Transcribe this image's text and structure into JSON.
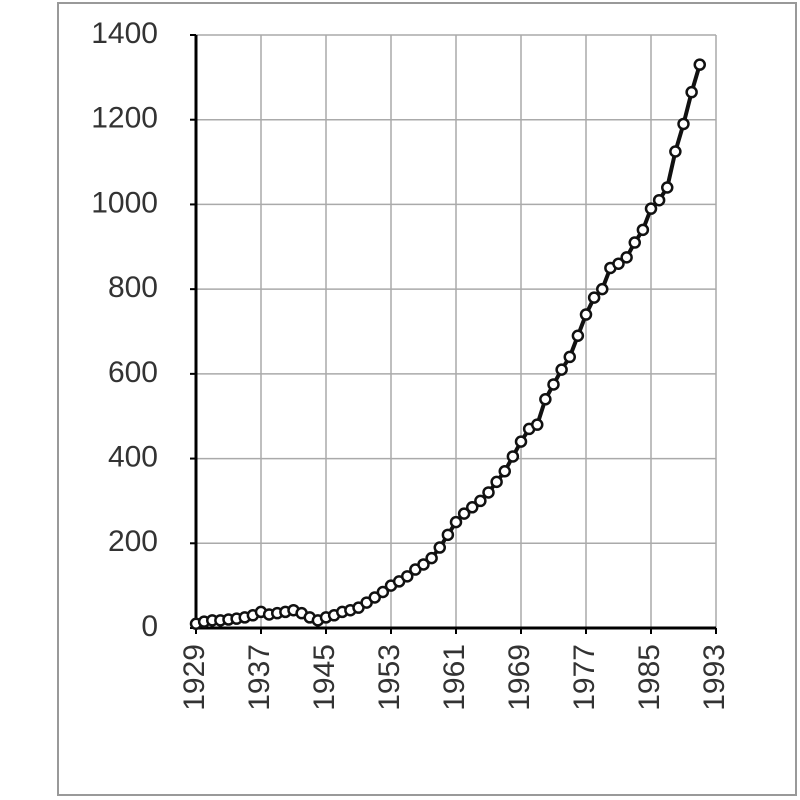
{
  "chart_data": {
    "type": "line",
    "x": [
      1929,
      1930,
      1931,
      1932,
      1933,
      1934,
      1935,
      1936,
      1937,
      1938,
      1939,
      1940,
      1941,
      1942,
      1943,
      1944,
      1945,
      1946,
      1947,
      1948,
      1949,
      1950,
      1951,
      1952,
      1953,
      1954,
      1955,
      1956,
      1957,
      1958,
      1959,
      1960,
      1961,
      1962,
      1963,
      1964,
      1965,
      1966,
      1967,
      1968,
      1969,
      1970,
      1971,
      1972,
      1973,
      1974,
      1975,
      1976,
      1977,
      1978,
      1979,
      1980,
      1981,
      1982,
      1983,
      1984,
      1985,
      1986,
      1987,
      1988,
      1989,
      1990,
      1991
    ],
    "values": [
      10,
      15,
      18,
      18,
      20,
      22,
      25,
      30,
      38,
      32,
      35,
      38,
      42,
      35,
      25,
      18,
      25,
      30,
      38,
      42,
      48,
      60,
      72,
      85,
      100,
      110,
      122,
      138,
      150,
      165,
      190,
      220,
      250,
      270,
      285,
      300,
      320,
      345,
      370,
      405,
      440,
      470,
      480,
      540,
      575,
      610,
      640,
      690,
      740,
      780,
      800,
      850,
      860,
      875,
      910,
      940,
      990,
      1010,
      1040,
      1125,
      1190,
      1265,
      1330
    ],
    "color": "#111111",
    "xlim": [
      1929,
      1993
    ],
    "xticks": [
      1929,
      1937,
      1945,
      1953,
      1961,
      1969,
      1977,
      1985,
      1993
    ],
    "ylim": [
      0,
      1400
    ],
    "yticks": [
      0,
      200,
      400,
      600,
      800,
      1000,
      1200,
      1400
    ],
    "grid": true
  }
}
